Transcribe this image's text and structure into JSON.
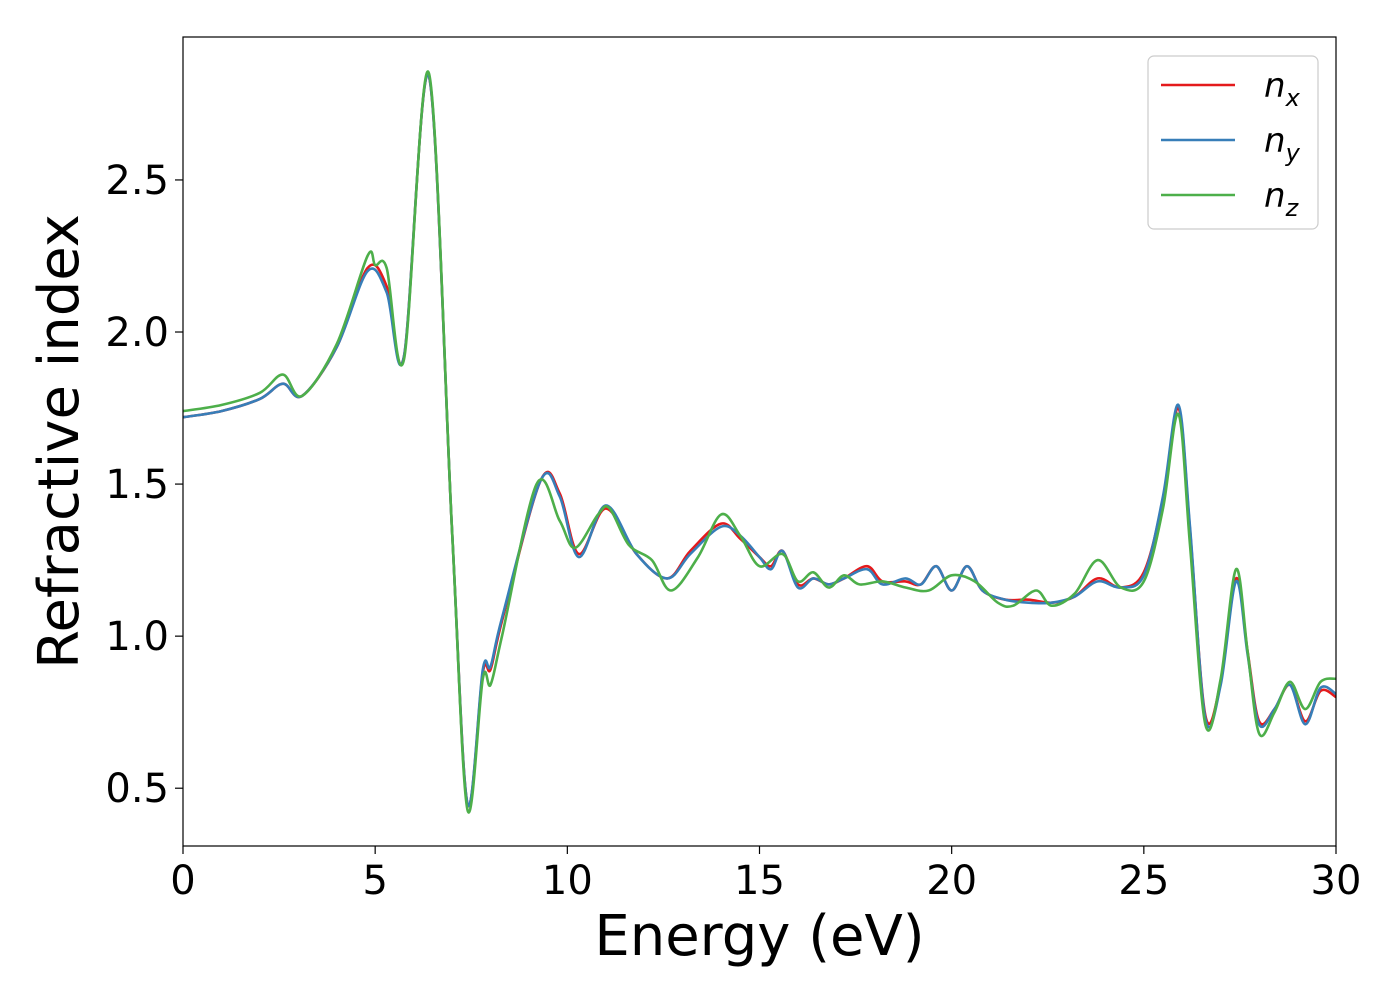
{
  "chart_data": {
    "type": "line",
    "title": "",
    "xlabel": "Energy (eV)",
    "ylabel": "Refractive index",
    "xlim": [
      0,
      30
    ],
    "ylim": [
      0.31,
      2.97
    ],
    "xticks": [
      0,
      5,
      10,
      15,
      20,
      25,
      30
    ],
    "xtick_labels": [
      "0",
      "5",
      "10",
      "15",
      "20",
      "25",
      "30"
    ],
    "yticks": [
      0.5,
      1.0,
      1.5,
      2.0,
      2.5
    ],
    "ytick_labels": [
      "0.5",
      "1.0",
      "1.5",
      "2.0",
      "2.5"
    ],
    "grid": false,
    "legend_position": "top-right",
    "series": [
      {
        "name": "n",
        "subscript": "x",
        "color": "#e41a1c",
        "x": [
          0,
          1,
          2,
          2.6,
          3.1,
          4,
          4.8,
          5.3,
          5.75,
          6.4,
          7.0,
          7.4,
          7.8,
          8.0,
          8.3,
          9.3,
          9.8,
          10.3,
          11.0,
          11.8,
          12.6,
          13.2,
          14.0,
          14.5,
          15.0,
          15.3,
          15.6,
          16.0,
          16.4,
          16.8,
          17.2,
          17.8,
          18.2,
          18.8,
          19.2,
          19.6,
          20.0,
          20.4,
          20.8,
          21.4,
          22.0,
          22.6,
          23.2,
          23.8,
          24.4,
          25.0,
          25.5,
          25.9,
          26.2,
          26.6,
          27.0,
          27.4,
          27.7,
          28.0,
          28.4,
          28.8,
          29.2,
          29.6,
          30.0
        ],
        "y": [
          1.72,
          1.74,
          1.78,
          1.83,
          1.79,
          1.95,
          2.21,
          2.15,
          1.92,
          2.84,
          1.35,
          0.45,
          0.88,
          0.89,
          1.05,
          1.51,
          1.47,
          1.27,
          1.42,
          1.27,
          1.19,
          1.28,
          1.37,
          1.32,
          1.26,
          1.23,
          1.28,
          1.17,
          1.19,
          1.17,
          1.19,
          1.23,
          1.18,
          1.18,
          1.17,
          1.23,
          1.15,
          1.23,
          1.15,
          1.12,
          1.12,
          1.11,
          1.13,
          1.19,
          1.16,
          1.21,
          1.45,
          1.75,
          1.35,
          0.74,
          0.85,
          1.19,
          0.95,
          0.72,
          0.76,
          0.84,
          0.72,
          0.82,
          0.8
        ]
      },
      {
        "name": "n",
        "subscript": "y",
        "color": "#377eb8",
        "x": [
          0,
          1,
          2,
          2.6,
          3.1,
          4,
          4.8,
          5.3,
          5.75,
          6.4,
          7.0,
          7.4,
          7.8,
          8.0,
          8.3,
          9.3,
          9.8,
          10.3,
          11.0,
          11.8,
          12.6,
          13.2,
          14.0,
          14.5,
          15.0,
          15.3,
          15.6,
          16.0,
          16.4,
          16.8,
          17.2,
          17.8,
          18.2,
          18.8,
          19.2,
          19.6,
          20.0,
          20.4,
          20.8,
          21.4,
          22.0,
          22.6,
          23.2,
          23.8,
          24.4,
          25.0,
          25.5,
          25.9,
          26.2,
          26.6,
          27.0,
          27.4,
          27.7,
          28.0,
          28.4,
          28.8,
          29.2,
          29.6,
          30.0
        ],
        "y": [
          1.72,
          1.74,
          1.78,
          1.83,
          1.79,
          1.95,
          2.2,
          2.13,
          1.92,
          2.84,
          1.35,
          0.45,
          0.89,
          0.9,
          1.06,
          1.51,
          1.46,
          1.26,
          1.43,
          1.27,
          1.19,
          1.27,
          1.36,
          1.33,
          1.26,
          1.22,
          1.28,
          1.16,
          1.19,
          1.17,
          1.19,
          1.22,
          1.17,
          1.19,
          1.17,
          1.23,
          1.15,
          1.23,
          1.15,
          1.12,
          1.11,
          1.11,
          1.13,
          1.18,
          1.16,
          1.2,
          1.46,
          1.76,
          1.36,
          0.73,
          0.84,
          1.18,
          0.94,
          0.71,
          0.76,
          0.84,
          0.71,
          0.83,
          0.81
        ]
      },
      {
        "name": "n",
        "subscript": "z",
        "color": "#4daf4a",
        "x": [
          0,
          1,
          2,
          2.6,
          3.1,
          4,
          4.8,
          5.0,
          5.3,
          5.75,
          6.4,
          7.0,
          7.4,
          7.8,
          8.0,
          8.3,
          9.2,
          9.8,
          10.2,
          10.8,
          11.1,
          11.6,
          12.2,
          12.7,
          13.4,
          14.0,
          14.5,
          15.0,
          15.6,
          16.0,
          16.4,
          16.8,
          17.2,
          17.6,
          18.2,
          18.8,
          19.4,
          20.0,
          20.6,
          21.2,
          21.6,
          22.2,
          22.6,
          23.2,
          23.8,
          24.4,
          25.0,
          25.5,
          25.9,
          26.2,
          26.6,
          27.0,
          27.4,
          27.7,
          28.0,
          28.4,
          28.8,
          29.2,
          29.6,
          30.0
        ],
        "y": [
          1.74,
          1.76,
          1.8,
          1.86,
          1.79,
          1.96,
          2.25,
          2.22,
          2.21,
          1.91,
          2.85,
          1.35,
          0.43,
          0.86,
          0.84,
          1.0,
          1.5,
          1.38,
          1.29,
          1.4,
          1.42,
          1.3,
          1.25,
          1.15,
          1.26,
          1.4,
          1.33,
          1.23,
          1.27,
          1.18,
          1.21,
          1.16,
          1.2,
          1.17,
          1.18,
          1.16,
          1.15,
          1.2,
          1.18,
          1.11,
          1.1,
          1.15,
          1.1,
          1.14,
          1.25,
          1.16,
          1.18,
          1.42,
          1.73,
          1.3,
          0.71,
          0.86,
          1.22,
          0.95,
          0.68,
          0.75,
          0.85,
          0.76,
          0.85,
          0.86
        ]
      }
    ]
  }
}
